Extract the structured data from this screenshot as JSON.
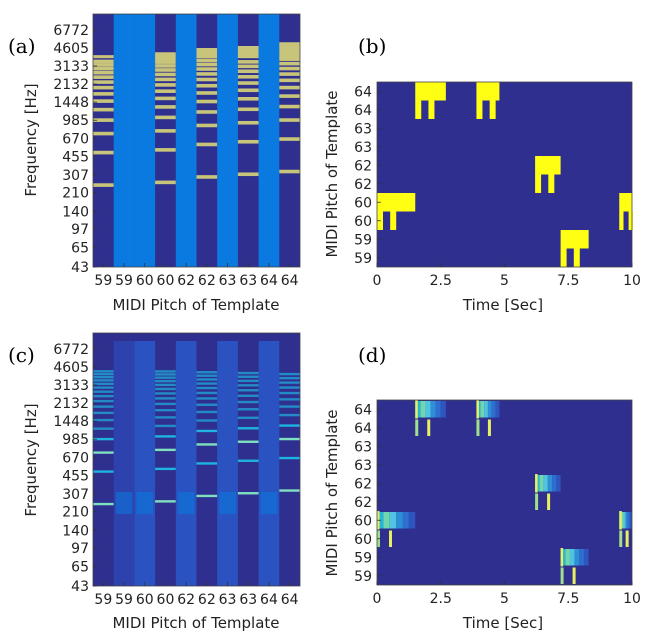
{
  "colors": {
    "background": "#2e2f8e",
    "active_column": "#0a7ae0",
    "template_band": "#c8c57a",
    "activation": "#ffff14",
    "learned_band": "#1fb3e0",
    "learned_band_bright": "#7fe0c0",
    "learned_col_a": "#2f45b0",
    "learned_col_b": "#2a57c6"
  },
  "chart_data": [
    {
      "panel_label": "(a)",
      "type": "heatmap",
      "xlabel": "MIDI Pitch of Template",
      "ylabel": "Frequency [Hz]",
      "x_tick_labels": [
        "59",
        "59",
        "60",
        "60",
        "62",
        "62",
        "63",
        "63",
        "64",
        "64"
      ],
      "y_tick_labels": [
        "6772",
        "4605",
        "3133",
        "2132",
        "1448",
        "985",
        "670",
        "455",
        "307",
        "210",
        "140",
        "97",
        "65",
        "43"
      ],
      "columns": [
        {
          "pitch": 59,
          "kind": "harmonic",
          "f0": 246.9,
          "top": 3950
        },
        {
          "pitch": 59,
          "kind": "onset"
        },
        {
          "pitch": 60,
          "kind": "onset"
        },
        {
          "pitch": 60,
          "kind": "harmonic",
          "f0": 261.6,
          "top": 4200
        },
        {
          "pitch": 62,
          "kind": "onset"
        },
        {
          "pitch": 62,
          "kind": "harmonic",
          "f0": 293.7,
          "top": 4600
        },
        {
          "pitch": 63,
          "kind": "onset"
        },
        {
          "pitch": 63,
          "kind": "harmonic",
          "f0": 311.1,
          "top": 4800
        },
        {
          "pitch": 64,
          "kind": "onset"
        },
        {
          "pitch": 64,
          "kind": "harmonic",
          "f0": 329.6,
          "top": 5200
        }
      ]
    },
    {
      "panel_label": "(b)",
      "type": "heatmap",
      "xlabel": "Time [Sec]",
      "ylabel": "MIDI Pitch of Template",
      "x_tick_labels": [
        "0",
        "2.5",
        "5",
        "7.5",
        "10"
      ],
      "xlim": [
        0,
        10
      ],
      "y_tick_labels": [
        "64",
        "64",
        "63",
        "63",
        "62",
        "62",
        "60",
        "60",
        "59",
        "59"
      ],
      "notes": [
        {
          "pitch": 60,
          "start": 0.0,
          "end": 1.5
        },
        {
          "pitch": 64,
          "start": 1.5,
          "end": 2.7
        },
        {
          "pitch": 64,
          "start": 3.9,
          "end": 4.8
        },
        {
          "pitch": 62,
          "start": 6.2,
          "end": 7.2
        },
        {
          "pitch": 59,
          "start": 7.2,
          "end": 8.3
        },
        {
          "pitch": 60,
          "start": 9.5,
          "end": 10.0
        }
      ]
    },
    {
      "panel_label": "(c)",
      "type": "heatmap",
      "xlabel": "MIDI Pitch of Template",
      "ylabel": "Frequency [Hz]",
      "x_tick_labels": [
        "59",
        "59",
        "60",
        "60",
        "62",
        "62",
        "63",
        "63",
        "64",
        "64"
      ],
      "y_tick_labels": [
        "6772",
        "4605",
        "3133",
        "2132",
        "1448",
        "985",
        "670",
        "455",
        "307",
        "210",
        "140",
        "97",
        "65",
        "43"
      ]
    },
    {
      "panel_label": "(d)",
      "type": "heatmap",
      "xlabel": "Time [Sec]",
      "ylabel": "MIDI Pitch of Template",
      "x_tick_labels": [
        "0",
        "2.5",
        "5",
        "7.5",
        "10"
      ],
      "xlim": [
        0,
        10
      ],
      "y_tick_labels": [
        "64",
        "64",
        "63",
        "63",
        "62",
        "62",
        "60",
        "60",
        "59",
        "59"
      ],
      "notes": [
        {
          "pitch": 60,
          "start": 0.0,
          "end": 1.5
        },
        {
          "pitch": 64,
          "start": 1.5,
          "end": 2.7
        },
        {
          "pitch": 64,
          "start": 3.9,
          "end": 4.8
        },
        {
          "pitch": 62,
          "start": 6.2,
          "end": 7.2
        },
        {
          "pitch": 59,
          "start": 7.2,
          "end": 8.3
        },
        {
          "pitch": 60,
          "start": 9.5,
          "end": 10.0
        }
      ]
    }
  ]
}
